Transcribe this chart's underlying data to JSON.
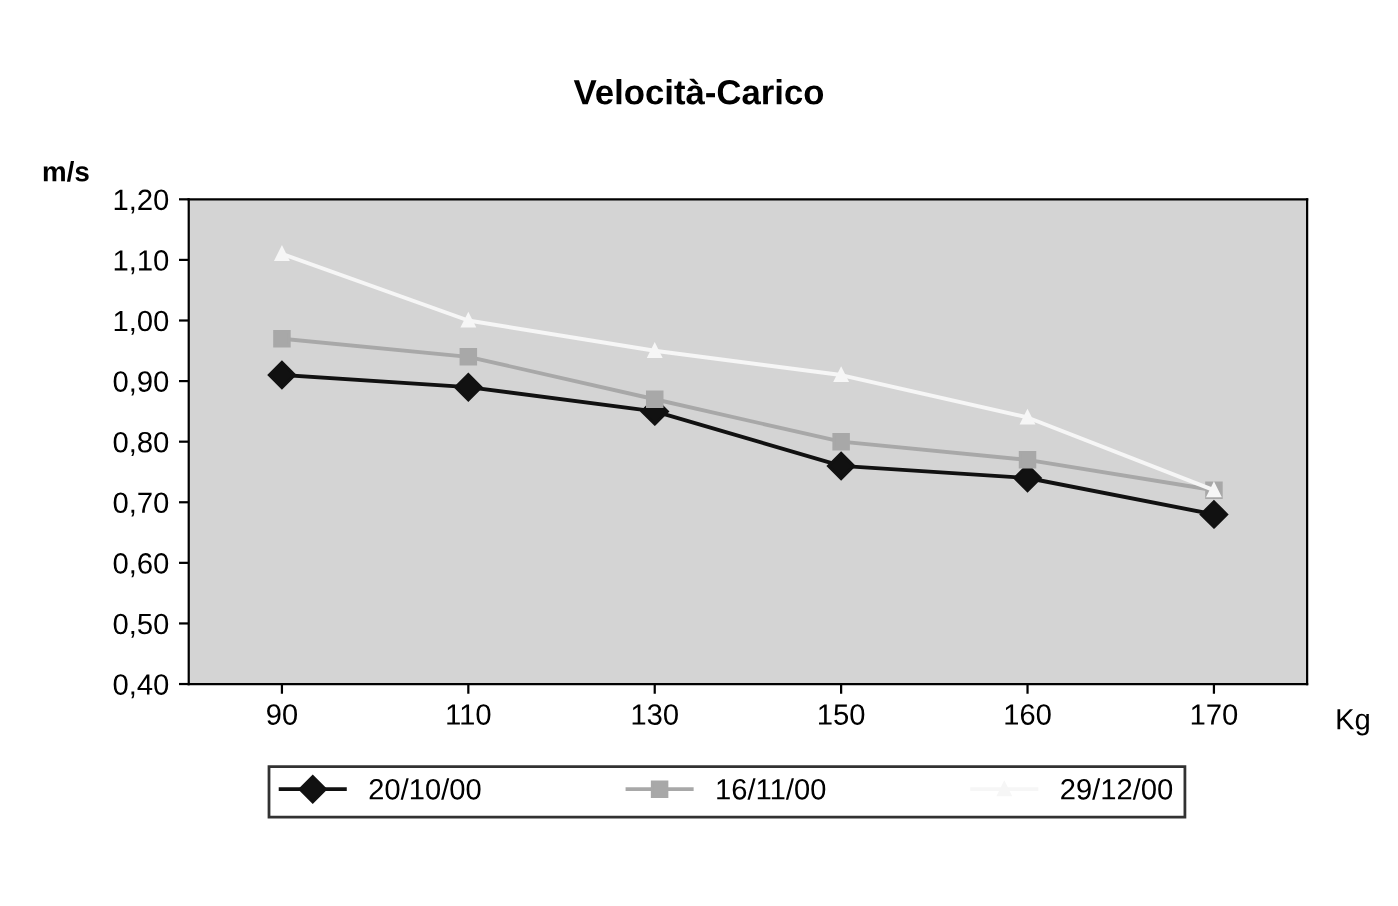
{
  "chart_data": {
    "type": "line",
    "title": "Velocità-Carico",
    "xlabel": "Kg",
    "ylabel": "m/s",
    "categories": [
      "90",
      "110",
      "130",
      "150",
      "160",
      "170"
    ],
    "series": [
      {
        "name": "20/10/00",
        "color": "#111111",
        "marker": "diamond",
        "values": [
          0.91,
          0.89,
          0.85,
          0.76,
          0.74,
          0.68
        ]
      },
      {
        "name": "16/11/00",
        "color": "#a8a8a8",
        "marker": "square",
        "values": [
          0.97,
          0.94,
          0.87,
          0.8,
          0.77,
          0.72
        ]
      },
      {
        "name": "29/12/00",
        "color": "#f6f6f6",
        "marker": "triangle",
        "values": [
          1.11,
          1.0,
          0.95,
          0.91,
          0.84,
          0.72
        ]
      }
    ],
    "ylim": [
      0.4,
      1.2
    ],
    "yticks": [
      {
        "value": 0.4,
        "label": "0,40"
      },
      {
        "value": 0.5,
        "label": "0,50"
      },
      {
        "value": 0.6,
        "label": "0,60"
      },
      {
        "value": 0.7,
        "label": "0,70"
      },
      {
        "value": 0.8,
        "label": "0,80"
      },
      {
        "value": 0.9,
        "label": "0,90"
      },
      {
        "value": 1.0,
        "label": "1,00"
      },
      {
        "value": 1.1,
        "label": "1,10"
      },
      {
        "value": 1.2,
        "label": "1,20"
      }
    ],
    "grid": false,
    "legend": "bottom"
  }
}
